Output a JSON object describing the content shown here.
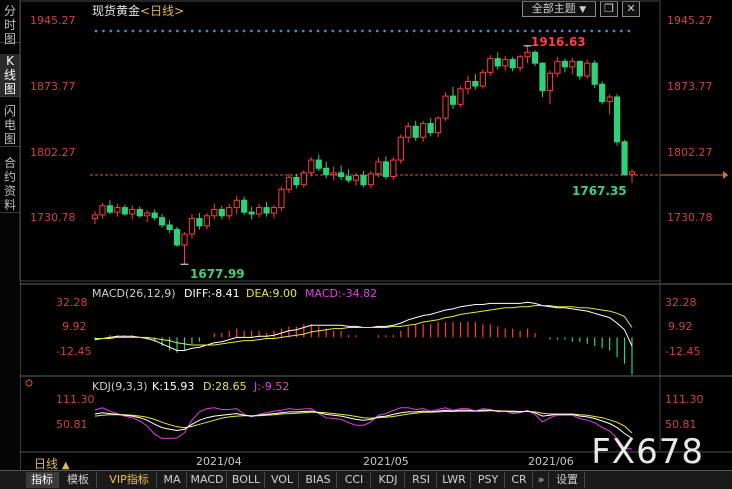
{
  "sidebar": {
    "tabs": [
      {
        "label": "分时图",
        "active": false
      },
      {
        "label": "K线图",
        "active": true
      },
      {
        "label": "闪电图",
        "active": false
      },
      {
        "label": "合约资料",
        "active": false
      }
    ]
  },
  "header": {
    "title": "现货黄金",
    "period": "<日线>",
    "theme_button": "全部主题",
    "theme_arrow": "▼"
  },
  "main_chart": {
    "price_labels": [
      "1945.27",
      "1873.77",
      "1802.27",
      "1730.78"
    ],
    "high_label": "1916.63",
    "low_label": "1677.99",
    "last_low_label": "1767.35"
  },
  "macd": {
    "name": "MACD(26,12,9)",
    "diff": "DIFF:-8.41",
    "dea": "DEA:9.00",
    "macd": "MACD:-34.82",
    "labels": [
      "32.28",
      "9.92",
      "-12.45"
    ]
  },
  "kdj": {
    "name": "KDJ(9,3,3)",
    "k": "K:15.93",
    "d": "D:28.65",
    "j": "J:-9.52",
    "labels": [
      "111.30",
      "50.81"
    ]
  },
  "date_labels": [
    "2021/04",
    "2021/05",
    "2021/06"
  ],
  "bottom_period": "日线",
  "bottom_period_arrow": "▲",
  "bottom_tabs": [
    "指标",
    "模板",
    "VIP指标",
    "MA",
    "MACD",
    "BOLL",
    "VOL",
    "BIAS",
    "CCI",
    "KDJ",
    "RSI",
    "LWR",
    "PSY",
    "CR",
    "设置"
  ],
  "watermark": "FX678",
  "colors": {
    "up": "#ff3b3b",
    "down": "#2fd07a",
    "diff": "#ffffff",
    "dea": "#e6e640",
    "j": "#e040e0",
    "axis": "#c8303a"
  },
  "chart_data": {
    "type": "candlestick",
    "title": "现货黄金",
    "y_ticks": [
      1730.78,
      1802.27,
      1873.77,
      1945.27
    ],
    "ohlc": [
      [
        1728,
        1736,
        1722,
        1732
      ],
      [
        1732,
        1745,
        1728,
        1742
      ],
      [
        1742,
        1748,
        1733,
        1735
      ],
      [
        1735,
        1744,
        1730,
        1740
      ],
      [
        1740,
        1743,
        1731,
        1733
      ],
      [
        1733,
        1742,
        1727,
        1738
      ],
      [
        1738,
        1741,
        1729,
        1731
      ],
      [
        1731,
        1737,
        1724,
        1734
      ],
      [
        1734,
        1738,
        1726,
        1729
      ],
      [
        1729,
        1733,
        1718,
        1721
      ],
      [
        1721,
        1726,
        1712,
        1716
      ],
      [
        1716,
        1719,
        1697,
        1699
      ],
      [
        1699,
        1713,
        1678,
        1711
      ],
      [
        1711,
        1733,
        1706,
        1728
      ],
      [
        1728,
        1734,
        1716,
        1720
      ],
      [
        1720,
        1734,
        1716,
        1731
      ],
      [
        1731,
        1744,
        1727,
        1738
      ],
      [
        1738,
        1742,
        1727,
        1731
      ],
      [
        1731,
        1744,
        1727,
        1740
      ],
      [
        1740,
        1753,
        1733,
        1748
      ],
      [
        1748,
        1752,
        1732,
        1735
      ],
      [
        1735,
        1741,
        1727,
        1733
      ],
      [
        1733,
        1744,
        1729,
        1740
      ],
      [
        1740,
        1746,
        1730,
        1734
      ],
      [
        1734,
        1743,
        1728,
        1740
      ],
      [
        1740,
        1763,
        1736,
        1760
      ],
      [
        1760,
        1777,
        1756,
        1773
      ],
      [
        1773,
        1777,
        1761,
        1765
      ],
      [
        1765,
        1781,
        1762,
        1778
      ],
      [
        1778,
        1795,
        1774,
        1792
      ],
      [
        1792,
        1798,
        1780,
        1783
      ],
      [
        1783,
        1790,
        1772,
        1776
      ],
      [
        1776,
        1785,
        1770,
        1778
      ],
      [
        1778,
        1786,
        1770,
        1774
      ],
      [
        1774,
        1782,
        1767,
        1770
      ],
      [
        1770,
        1778,
        1764,
        1775
      ],
      [
        1775,
        1780,
        1762,
        1765
      ],
      [
        1765,
        1780,
        1761,
        1777
      ],
      [
        1777,
        1795,
        1773,
        1790
      ],
      [
        1790,
        1796,
        1771,
        1774
      ],
      [
        1774,
        1795,
        1770,
        1792
      ],
      [
        1792,
        1820,
        1788,
        1817
      ],
      [
        1817,
        1833,
        1811,
        1829
      ],
      [
        1829,
        1835,
        1813,
        1817
      ],
      [
        1817,
        1835,
        1812,
        1832
      ],
      [
        1832,
        1838,
        1818,
        1822
      ],
      [
        1822,
        1840,
        1817,
        1838
      ],
      [
        1838,
        1866,
        1835,
        1862
      ],
      [
        1862,
        1872,
        1848,
        1853
      ],
      [
        1853,
        1873,
        1850,
        1870
      ],
      [
        1870,
        1884,
        1864,
        1878
      ],
      [
        1878,
        1886,
        1869,
        1873
      ],
      [
        1873,
        1891,
        1870,
        1888
      ],
      [
        1888,
        1907,
        1884,
        1903
      ],
      [
        1903,
        1910,
        1891,
        1895
      ],
      [
        1895,
        1906,
        1890,
        1902
      ],
      [
        1902,
        1905,
        1889,
        1893
      ],
      [
        1893,
        1907,
        1889,
        1905
      ],
      [
        1905,
        1917,
        1898,
        1910
      ],
      [
        1910,
        1912,
        1895,
        1898
      ],
      [
        1898,
        1899,
        1861,
        1868
      ],
      [
        1868,
        1890,
        1853,
        1887
      ],
      [
        1887,
        1905,
        1883,
        1900
      ],
      [
        1900,
        1903,
        1888,
        1894
      ],
      [
        1894,
        1904,
        1886,
        1900
      ],
      [
        1900,
        1901,
        1880,
        1884
      ],
      [
        1884,
        1902,
        1881,
        1898
      ],
      [
        1898,
        1901,
        1871,
        1875
      ],
      [
        1875,
        1878,
        1853,
        1856
      ],
      [
        1856,
        1864,
        1842,
        1861
      ],
      [
        1861,
        1864,
        1808,
        1812
      ],
      [
        1812,
        1814,
        1775,
        1776
      ],
      [
        1776,
        1782,
        1767,
        1779
      ]
    ],
    "macd_series": {
      "diff": [
        -2,
        -1,
        0,
        1,
        1,
        1,
        0,
        -1,
        -3,
        -6,
        -9,
        -12,
        -12,
        -10,
        -9,
        -7,
        -5,
        -4,
        -2,
        0,
        0,
        0,
        1,
        1,
        2,
        4,
        6,
        7,
        9,
        11,
        11,
        11,
        11,
        11,
        10,
        10,
        9,
        9,
        10,
        10,
        11,
        13,
        16,
        18,
        20,
        21,
        23,
        25,
        26,
        28,
        29,
        30,
        30,
        31,
        31,
        31,
        31,
        31,
        32,
        31,
        29,
        28,
        27,
        27,
        26,
        25,
        24,
        22,
        20,
        18,
        13,
        7,
        -8
      ],
      "dea": [
        -1,
        -1,
        -1,
        0,
        0,
        0,
        0,
        0,
        -1,
        -2,
        -3,
        -5,
        -6,
        -7,
        -7,
        -7,
        -7,
        -6,
        -5,
        -4,
        -3,
        -3,
        -2,
        -1,
        -1,
        0,
        1,
        2,
        3,
        5,
        6,
        7,
        8,
        8,
        9,
        9,
        9,
        9,
        9,
        9,
        10,
        10,
        11,
        12,
        14,
        15,
        16,
        18,
        19,
        21,
        22,
        23,
        24,
        25,
        26,
        27,
        27,
        28,
        28,
        29,
        29,
        29,
        28,
        28,
        28,
        27,
        27,
        26,
        25,
        24,
        22,
        19,
        9
      ],
      "bars_mode": "2*(diff-dea)"
    },
    "kdj_series": {
      "k": [
        75,
        78,
        76,
        74,
        72,
        70,
        66,
        60,
        50,
        42,
        38,
        35,
        38,
        50,
        60,
        66,
        70,
        72,
        74,
        76,
        72,
        70,
        72,
        74,
        76,
        78,
        80,
        80,
        81,
        82,
        78,
        74,
        72,
        70,
        66,
        62,
        60,
        62,
        68,
        70,
        74,
        78,
        80,
        80,
        82,
        80,
        82,
        84,
        82,
        84,
        84,
        82,
        84,
        84,
        82,
        82,
        80,
        80,
        82,
        78,
        70,
        72,
        74,
        74,
        74,
        70,
        68,
        64,
        58,
        52,
        42,
        28,
        16
      ],
      "d": [
        70,
        72,
        73,
        73,
        73,
        72,
        70,
        67,
        62,
        55,
        49,
        44,
        42,
        45,
        50,
        55,
        60,
        65,
        68,
        70,
        71,
        71,
        71,
        72,
        73,
        75,
        76,
        77,
        78,
        79,
        79,
        78,
        76,
        74,
        72,
        69,
        66,
        65,
        66,
        67,
        69,
        72,
        75,
        77,
        79,
        79,
        80,
        81,
        81,
        82,
        82,
        82,
        82,
        83,
        83,
        82,
        82,
        81,
        81,
        80,
        77,
        75,
        75,
        75,
        75,
        73,
        72,
        69,
        66,
        61,
        55,
        46,
        29
      ],
      "j": [
        85,
        90,
        82,
        76,
        70,
        66,
        58,
        46,
        26,
        16,
        16,
        17,
        30,
        60,
        80,
        88,
        90,
        86,
        86,
        88,
        74,
        68,
        74,
        78,
        82,
        84,
        88,
        86,
        87,
        88,
        76,
        66,
        64,
        62,
        54,
        48,
        48,
        56,
        72,
        76,
        84,
        90,
        90,
        86,
        88,
        82,
        86,
        90,
        84,
        88,
        88,
        82,
        88,
        86,
        80,
        82,
        76,
        78,
        84,
        74,
        56,
        66,
        72,
        72,
        72,
        64,
        60,
        54,
        42,
        34,
        16,
        -8,
        -10
      ]
    }
  }
}
